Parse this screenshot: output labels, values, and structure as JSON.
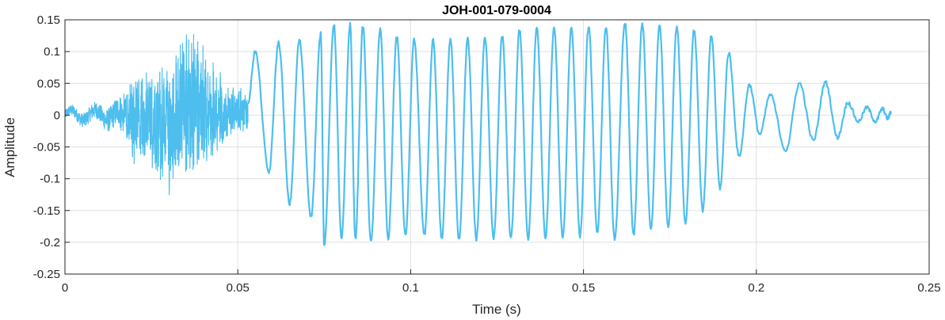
{
  "chart_data": {
    "type": "line",
    "title": "JOH-001-079-0004",
    "xlabel": "Time (s)",
    "ylabel": "Amplitude",
    "xlim": [
      0,
      0.25
    ],
    "ylim": [
      -0.25,
      0.15
    ],
    "x_ticks": [
      0,
      0.05,
      0.1,
      0.15,
      0.2,
      0.25
    ],
    "x_tick_labels": [
      "0",
      "0.05",
      "0.1",
      "0.15",
      "0.2",
      "0.25"
    ],
    "y_ticks": [
      0.15,
      0.1,
      0.05,
      0,
      -0.05,
      -0.1,
      -0.15,
      -0.2,
      -0.25
    ],
    "y_tick_labels": [
      "0.15",
      "0.1",
      "0.05",
      "0",
      "-0.05",
      "-0.1",
      "-0.15",
      "-0.2",
      "-0.25"
    ],
    "grid": true,
    "line_color": "#4DBEEE",
    "series": [
      {
        "peaks": [
          {
            "x": 0.055,
            "y": 0.1
          },
          {
            "x": 0.059,
            "y": -0.09
          },
          {
            "x": 0.0618,
            "y": 0.114
          },
          {
            "x": 0.065,
            "y": -0.14
          },
          {
            "x": 0.0678,
            "y": 0.118
          },
          {
            "x": 0.0712,
            "y": -0.16
          },
          {
            "x": 0.074,
            "y": 0.128
          },
          {
            "x": 0.075,
            "y": -0.205
          },
          {
            "x": 0.0778,
            "y": 0.143
          },
          {
            "x": 0.08,
            "y": -0.195
          },
          {
            "x": 0.0825,
            "y": 0.143
          },
          {
            "x": 0.084,
            "y": -0.195
          },
          {
            "x": 0.0862,
            "y": 0.14
          },
          {
            "x": 0.0885,
            "y": -0.2
          },
          {
            "x": 0.0912,
            "y": 0.135
          },
          {
            "x": 0.0935,
            "y": -0.195
          },
          {
            "x": 0.096,
            "y": 0.125
          },
          {
            "x": 0.0985,
            "y": -0.19
          },
          {
            "x": 0.101,
            "y": 0.118
          },
          {
            "x": 0.104,
            "y": -0.19
          },
          {
            "x": 0.1065,
            "y": 0.118
          },
          {
            "x": 0.109,
            "y": -0.195
          },
          {
            "x": 0.1115,
            "y": 0.12
          },
          {
            "x": 0.114,
            "y": -0.195
          },
          {
            "x": 0.1165,
            "y": 0.12
          },
          {
            "x": 0.119,
            "y": -0.195
          },
          {
            "x": 0.1215,
            "y": 0.122
          },
          {
            "x": 0.124,
            "y": -0.195
          },
          {
            "x": 0.1265,
            "y": 0.125
          },
          {
            "x": 0.129,
            "y": -0.195
          },
          {
            "x": 0.1315,
            "y": 0.135
          },
          {
            "x": 0.134,
            "y": -0.195
          },
          {
            "x": 0.1365,
            "y": 0.138
          },
          {
            "x": 0.139,
            "y": -0.195
          },
          {
            "x": 0.1415,
            "y": 0.137
          },
          {
            "x": 0.144,
            "y": -0.192
          },
          {
            "x": 0.1465,
            "y": 0.138
          },
          {
            "x": 0.149,
            "y": -0.19
          },
          {
            "x": 0.1515,
            "y": 0.14
          },
          {
            "x": 0.154,
            "y": -0.185
          },
          {
            "x": 0.1565,
            "y": 0.14
          },
          {
            "x": 0.159,
            "y": -0.195
          },
          {
            "x": 0.162,
            "y": 0.145
          },
          {
            "x": 0.1645,
            "y": -0.19
          },
          {
            "x": 0.167,
            "y": 0.145
          },
          {
            "x": 0.1695,
            "y": -0.18
          },
          {
            "x": 0.172,
            "y": 0.143
          },
          {
            "x": 0.1745,
            "y": -0.175
          },
          {
            "x": 0.177,
            "y": 0.14
          },
          {
            "x": 0.1795,
            "y": -0.17
          },
          {
            "x": 0.182,
            "y": 0.135
          },
          {
            "x": 0.1845,
            "y": -0.15
          },
          {
            "x": 0.187,
            "y": 0.125
          },
          {
            "x": 0.1895,
            "y": -0.115
          },
          {
            "x": 0.192,
            "y": 0.098
          },
          {
            "x": 0.195,
            "y": -0.065
          },
          {
            "x": 0.198,
            "y": 0.048
          },
          {
            "x": 0.201,
            "y": -0.03
          },
          {
            "x": 0.204,
            "y": 0.032
          },
          {
            "x": 0.2085,
            "y": -0.055
          },
          {
            "x": 0.2125,
            "y": 0.05
          },
          {
            "x": 0.2165,
            "y": -0.04
          },
          {
            "x": 0.22,
            "y": 0.052
          },
          {
            "x": 0.2235,
            "y": -0.035
          },
          {
            "x": 0.2265,
            "y": 0.02
          },
          {
            "x": 0.2295,
            "y": -0.01
          },
          {
            "x": 0.232,
            "y": 0.012
          },
          {
            "x": 0.2345,
            "y": -0.01
          },
          {
            "x": 0.2365,
            "y": 0.01
          },
          {
            "x": 0.238,
            "y": -0.005
          },
          {
            "x": 0.239,
            "y": 0.005
          }
        ],
        "noise_segment": {
          "x_range": [
            0,
            0.053
          ],
          "envelope_max": [
            {
              "x": 0,
              "y": 0.008
            },
            {
              "x": 0.01,
              "y": 0.02
            },
            {
              "x": 0.016,
              "y": 0.03
            },
            {
              "x": 0.02,
              "y": 0.075
            },
            {
              "x": 0.025,
              "y": 0.08
            },
            {
              "x": 0.03,
              "y": 0.09
            },
            {
              "x": 0.034,
              "y": 0.145
            },
            {
              "x": 0.038,
              "y": 0.145
            },
            {
              "x": 0.042,
              "y": 0.1
            },
            {
              "x": 0.046,
              "y": 0.06
            },
            {
              "x": 0.05,
              "y": 0.045
            },
            {
              "x": 0.053,
              "y": 0.04
            }
          ],
          "envelope_min": [
            {
              "x": 0,
              "y": -0.01
            },
            {
              "x": 0.01,
              "y": -0.015
            },
            {
              "x": 0.016,
              "y": -0.03
            },
            {
              "x": 0.02,
              "y": -0.08
            },
            {
              "x": 0.025,
              "y": -0.09
            },
            {
              "x": 0.03,
              "y": -0.14
            },
            {
              "x": 0.034,
              "y": -0.1
            },
            {
              "x": 0.038,
              "y": -0.11
            },
            {
              "x": 0.042,
              "y": -0.08
            },
            {
              "x": 0.046,
              "y": -0.06
            },
            {
              "x": 0.05,
              "y": -0.035
            },
            {
              "x": 0.053,
              "y": -0.04
            }
          ]
        }
      }
    ]
  }
}
